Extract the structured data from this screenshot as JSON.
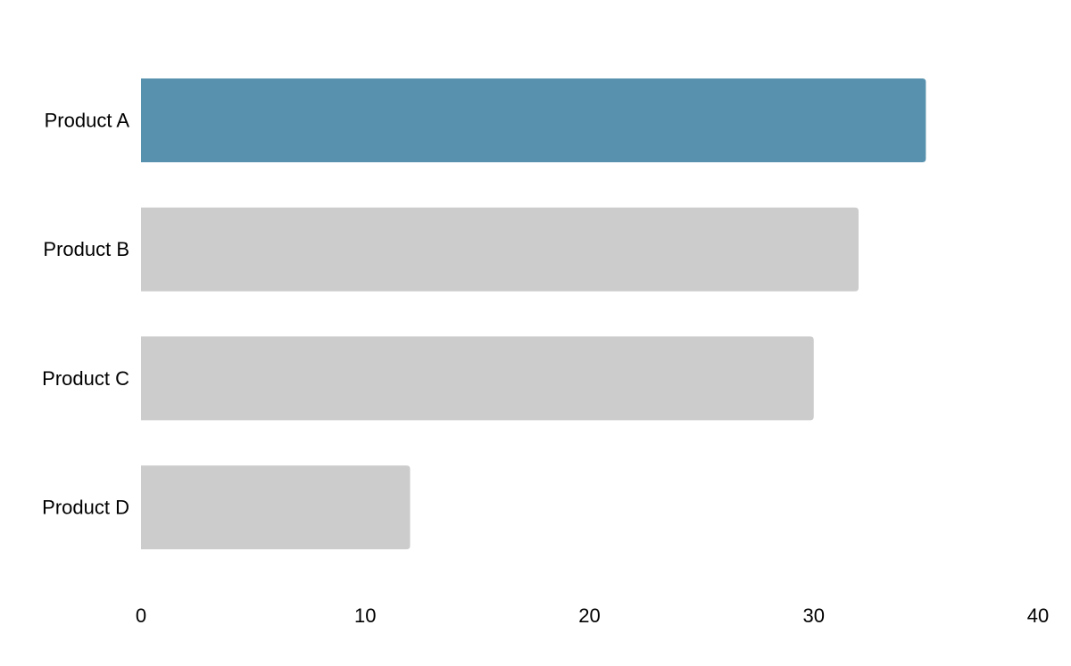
{
  "chart_data": {
    "type": "bar",
    "orientation": "horizontal",
    "categories": [
      "Product A",
      "Product B",
      "Product C",
      "Product D"
    ],
    "values": [
      35,
      32,
      30,
      12
    ],
    "highlight_category": "Product A",
    "xlim": [
      0,
      40
    ],
    "x_ticks": [
      0,
      10,
      20,
      30,
      40
    ],
    "grid": false,
    "legend": "none"
  },
  "colors": {
    "highlight": "#5891ae",
    "default": "#cccccc"
  }
}
